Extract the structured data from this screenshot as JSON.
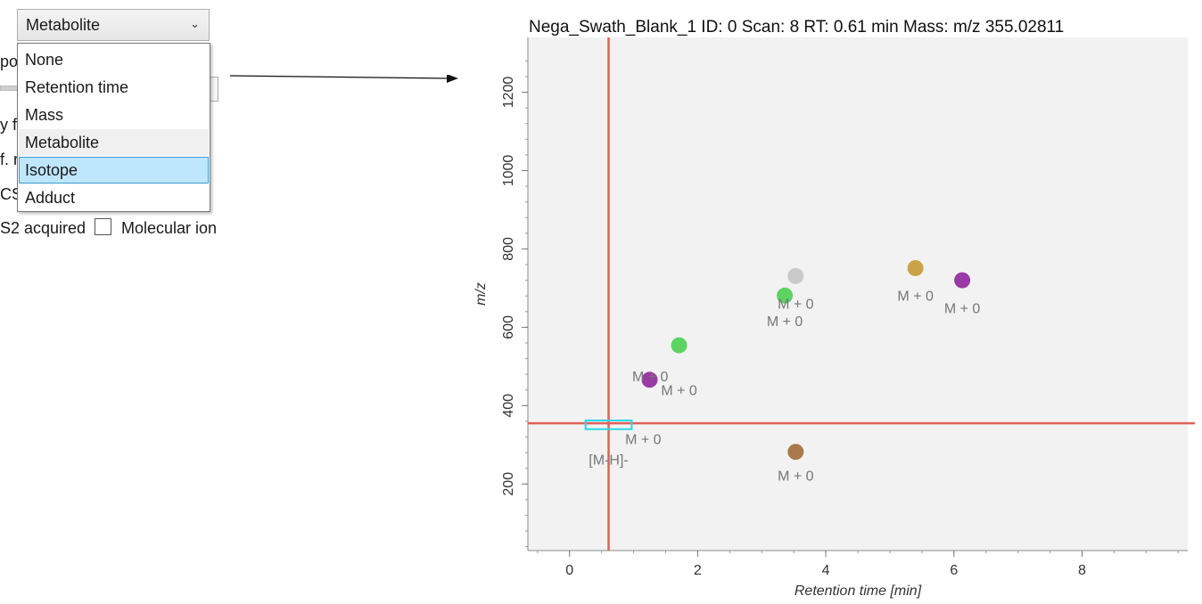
{
  "combo": {
    "value": "Metabolite"
  },
  "dropdown": {
    "items": [
      "None",
      "Retention time",
      "Mass",
      "Metabolite",
      "Isotope",
      "Adduct"
    ],
    "selected": "Metabolite",
    "highlighted": "Isotope"
  },
  "behind": {
    "frag1": "po",
    "frag2": "y f",
    "frag3": "f. r",
    "frag4": "CS",
    "frag5": "S2 acquired",
    "checkbox_label": "Molecular ion"
  },
  "colors": {
    "crosshair": "#e0605a",
    "plot_bg": "#f2f2f2",
    "highlight": "#bee6fd",
    "box": "#27d8e6"
  },
  "chart_data": {
    "type": "scatter",
    "title": "Nega_Swath_Blank_1  ID: 0  Scan: 8  RT: 0.61 min  Mass: m/z 355.02811",
    "xlabel": "Retention time [min]",
    "ylabel": "m/z",
    "xlim": [
      -0.65,
      9.65
    ],
    "ylim": [
      30,
      1340
    ],
    "xticks": [
      0,
      2,
      4,
      6,
      8
    ],
    "yticks": [
      200,
      400,
      600,
      800,
      1000,
      1200
    ],
    "crosshair": {
      "x": 0.61,
      "y": 355.03
    },
    "points": [
      {
        "x": 1.71,
        "y": 554,
        "color": "#5dd362",
        "label": "M + 0",
        "lx": 1.71,
        "ly": 427
      },
      {
        "x": 1.25,
        "y": 466,
        "color": "#9a3aa6",
        "label": "M + 0",
        "lx": 1.26,
        "ly": 462
      },
      {
        "x": 3.36,
        "y": 681,
        "color": "#5dd362",
        "label": "M + 0",
        "lx": 3.53,
        "ly": 647
      },
      {
        "x": 3.53,
        "y": 731,
        "color": "#c9c9c9",
        "label": "M + 0",
        "lx": 3.36,
        "ly": 603
      },
      {
        "x": 5.4,
        "y": 751,
        "color": "#caa349",
        "label": "M + 0",
        "lx": 5.4,
        "ly": 668
      },
      {
        "x": 6.13,
        "y": 720,
        "color": "#9a3aa6",
        "label": "M + 0",
        "lx": 6.13,
        "ly": 636
      },
      {
        "x": 3.53,
        "y": 282,
        "color": "#a97a4c",
        "label": "M + 0",
        "lx": 3.53,
        "ly": 208
      }
    ],
    "crosshair_labels": [
      {
        "text": "M + 0",
        "x": 1.15,
        "y": 302
      },
      {
        "text": "[M-H]-",
        "x": 0.61,
        "y": 250
      }
    ],
    "box": {
      "x0": 0.25,
      "x1": 0.97,
      "y0": 340,
      "y1": 362
    }
  }
}
